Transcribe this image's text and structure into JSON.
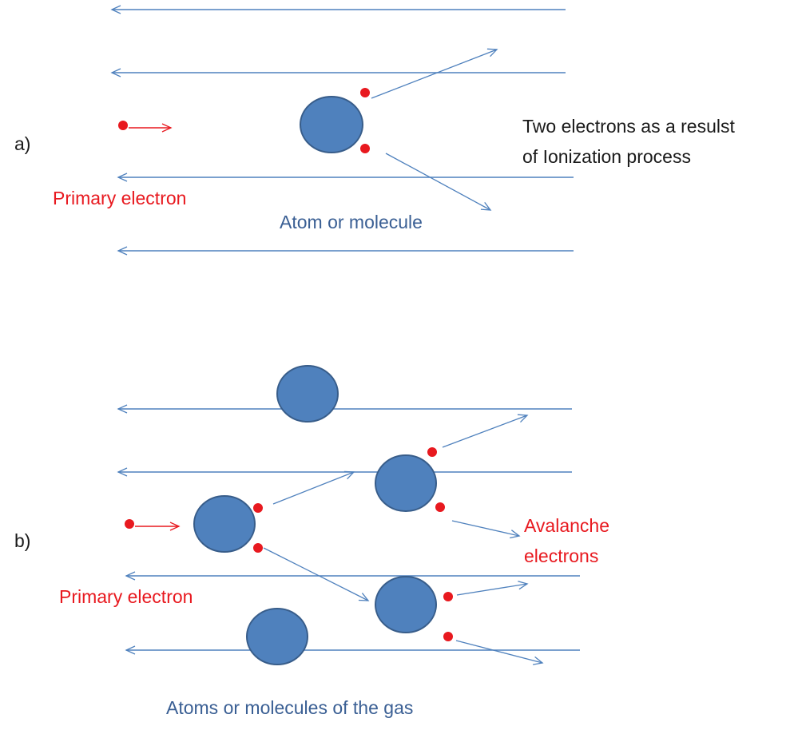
{
  "panel_a": {
    "label": "a)",
    "primary_label": "Primary electron",
    "atom_label": "Atom or molecule",
    "result_line1": "Two electrons as a resulst",
    "result_line2": "of Ionization process"
  },
  "panel_b": {
    "label": "b)",
    "primary_label": "Primary electron",
    "avalanche_line1": "Avalanche",
    "avalanche_line2": "electrons",
    "gas_label": "Atoms or molecules of the gas"
  },
  "colors": {
    "field_line": "#4f81bd",
    "atom_fill": "#4f81bd",
    "atom_stroke": "#385d8a",
    "electron": "#e8191f",
    "red_text": "#e8191f",
    "blue_text": "#3a5f94",
    "black_text": "#1a1a1a"
  }
}
